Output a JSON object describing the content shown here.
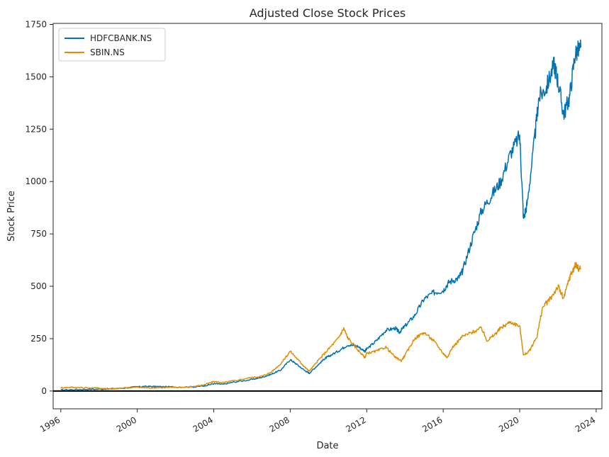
{
  "chart_data": {
    "type": "line",
    "title": "Adjusted Close Stock Prices",
    "xlabel": "Date",
    "ylabel": "Stock Price",
    "xlim": [
      1995.6,
      2024.3
    ],
    "ylim": [
      -85,
      1755
    ],
    "x_ticks": [
      1996,
      2000,
      2004,
      2008,
      2012,
      2016,
      2020,
      2024
    ],
    "x_tick_labels": [
      "1996",
      "2000",
      "2004",
      "2008",
      "2012",
      "2016",
      "2020",
      "2024"
    ],
    "y_ticks": [
      0,
      250,
      500,
      750,
      1000,
      1250,
      1500,
      1750
    ],
    "y_tick_labels": [
      "0",
      "250",
      "500",
      "750",
      "1000",
      "1250",
      "1500",
      "1750"
    ],
    "reference_line_y": 0,
    "grid": false,
    "legend_position": "upper-left",
    "series": [
      {
        "name": "HDFCBANK.NS",
        "color": "#0072b2",
        "points": [
          [
            1996.0,
            5
          ],
          [
            1997.0,
            7
          ],
          [
            1998.0,
            9
          ],
          [
            1999.0,
            12
          ],
          [
            2000.0,
            20
          ],
          [
            2000.5,
            22
          ],
          [
            2001.0,
            21
          ],
          [
            2002.0,
            19
          ],
          [
            2003.0,
            20
          ],
          [
            2003.5,
            25
          ],
          [
            2004.0,
            35
          ],
          [
            2004.5,
            32
          ],
          [
            2005.0,
            42
          ],
          [
            2006.0,
            55
          ],
          [
            2006.5,
            65
          ],
          [
            2007.0,
            80
          ],
          [
            2007.5,
            100
          ],
          [
            2008.0,
            150
          ],
          [
            2008.3,
            130
          ],
          [
            2008.8,
            95
          ],
          [
            2009.0,
            85
          ],
          [
            2009.4,
            120
          ],
          [
            2009.8,
            155
          ],
          [
            2010.0,
            165
          ],
          [
            2010.5,
            190
          ],
          [
            2011.0,
            220
          ],
          [
            2011.5,
            215
          ],
          [
            2011.9,
            190
          ],
          [
            2012.0,
            200
          ],
          [
            2012.5,
            240
          ],
          [
            2013.0,
            290
          ],
          [
            2013.5,
            300
          ],
          [
            2013.7,
            280
          ],
          [
            2014.0,
            310
          ],
          [
            2014.5,
            360
          ],
          [
            2015.0,
            440
          ],
          [
            2015.5,
            470
          ],
          [
            2016.0,
            480
          ],
          [
            2016.3,
            520
          ],
          [
            2016.8,
            540
          ],
          [
            2017.0,
            570
          ],
          [
            2017.5,
            720
          ],
          [
            2018.0,
            860
          ],
          [
            2018.5,
            930
          ],
          [
            2019.0,
            1000
          ],
          [
            2019.5,
            1130
          ],
          [
            2020.0,
            1220
          ],
          [
            2020.2,
            820
          ],
          [
            2020.4,
            900
          ],
          [
            2020.8,
            1220
          ],
          [
            2021.0,
            1400
          ],
          [
            2021.4,
            1450
          ],
          [
            2021.8,
            1560
          ],
          [
            2022.0,
            1480
          ],
          [
            2022.3,
            1320
          ],
          [
            2022.6,
            1400
          ],
          [
            2022.9,
            1610
          ],
          [
            2023.2,
            1640
          ]
        ]
      },
      {
        "name": "SBIN.NS",
        "color": "#de8f05",
        "points": [
          [
            1996.0,
            15
          ],
          [
            1996.5,
            18
          ],
          [
            1997.0,
            16
          ],
          [
            1998.0,
            14
          ],
          [
            1998.5,
            10
          ],
          [
            1999.0,
            12
          ],
          [
            1999.5,
            16
          ],
          [
            2000.0,
            18
          ],
          [
            2000.5,
            15
          ],
          [
            2001.0,
            16
          ],
          [
            2002.0,
            17
          ],
          [
            2003.0,
            22
          ],
          [
            2003.5,
            30
          ],
          [
            2004.0,
            45
          ],
          [
            2004.5,
            40
          ],
          [
            2005.0,
            48
          ],
          [
            2006.0,
            65
          ],
          [
            2006.5,
            70
          ],
          [
            2007.0,
            90
          ],
          [
            2007.5,
            130
          ],
          [
            2008.0,
            190
          ],
          [
            2008.5,
            140
          ],
          [
            2008.8,
            110
          ],
          [
            2009.0,
            95
          ],
          [
            2009.5,
            150
          ],
          [
            2010.0,
            200
          ],
          [
            2010.5,
            250
          ],
          [
            2010.8,
            300
          ],
          [
            2011.0,
            255
          ],
          [
            2011.5,
            200
          ],
          [
            2011.9,
            160
          ],
          [
            2012.0,
            180
          ],
          [
            2012.5,
            190
          ],
          [
            2013.0,
            210
          ],
          [
            2013.5,
            160
          ],
          [
            2013.8,
            145
          ],
          [
            2014.0,
            170
          ],
          [
            2014.5,
            250
          ],
          [
            2015.0,
            280
          ],
          [
            2015.5,
            240
          ],
          [
            2016.0,
            180
          ],
          [
            2016.2,
            160
          ],
          [
            2016.5,
            210
          ],
          [
            2017.0,
            260
          ],
          [
            2017.5,
            280
          ],
          [
            2018.0,
            300
          ],
          [
            2018.3,
            240
          ],
          [
            2018.7,
            270
          ],
          [
            2019.0,
            300
          ],
          [
            2019.5,
            330
          ],
          [
            2020.0,
            310
          ],
          [
            2020.2,
            170
          ],
          [
            2020.5,
            190
          ],
          [
            2020.9,
            260
          ],
          [
            2021.2,
            400
          ],
          [
            2021.6,
            440
          ],
          [
            2022.0,
            500
          ],
          [
            2022.3,
            440
          ],
          [
            2022.6,
            540
          ],
          [
            2022.9,
            600
          ],
          [
            2023.2,
            580
          ]
        ]
      }
    ]
  }
}
